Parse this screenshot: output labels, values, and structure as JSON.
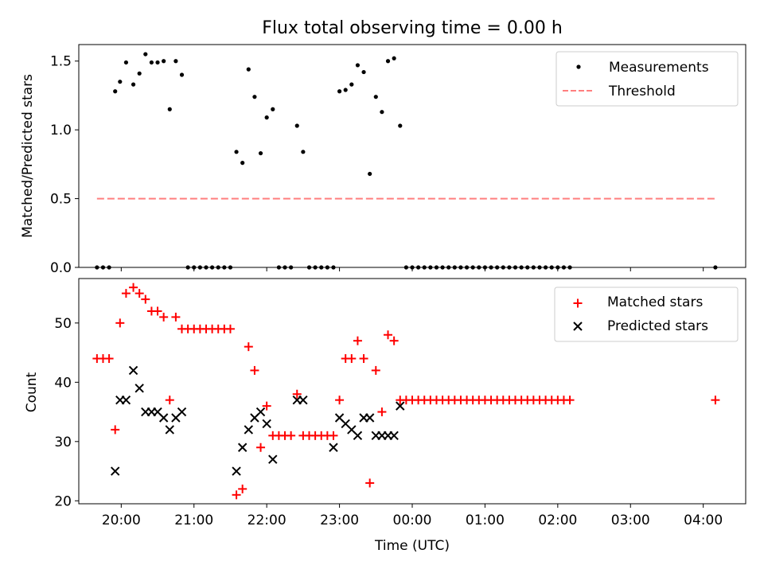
{
  "chart_data": [
    {
      "type": "scatter",
      "title": "Flux total observing time = 0.00 h",
      "xlabel": "",
      "ylabel": "Matched/Predicted stars",
      "xlim": [
        "19:25",
        "04:35"
      ],
      "ylim": [
        0,
        1.62
      ],
      "yticks": [
        "0.0",
        "0.5",
        "1.0",
        "1.5"
      ],
      "legend_position": "upper right",
      "series": [
        {
          "name": "Measurements",
          "marker": "dot",
          "color": "#000000",
          "x": [
            "19:40",
            "19:45",
            "19:50",
            "19:55",
            "19:59",
            "20:04",
            "20:10",
            "20:15",
            "20:20",
            "20:25",
            "20:30",
            "20:35",
            "20:40",
            "20:45",
            "20:50",
            "20:55",
            "21:00",
            "21:05",
            "21:10",
            "21:15",
            "21:20",
            "21:25",
            "21:30",
            "21:35",
            "21:40",
            "21:45",
            "21:50",
            "21:55",
            "22:00",
            "22:05",
            "22:10",
            "22:15",
            "22:20",
            "22:25",
            "22:30",
            "22:35",
            "22:40",
            "22:45",
            "22:50",
            "22:55",
            "23:00",
            "23:05",
            "23:10",
            "23:15",
            "23:20",
            "23:25",
            "23:30",
            "23:35",
            "23:40",
            "23:45",
            "23:50",
            "23:55",
            "00:00",
            "00:05",
            "00:10",
            "00:15",
            "00:20",
            "00:25",
            "00:30",
            "00:35",
            "00:40",
            "00:45",
            "00:50",
            "00:55",
            "01:00",
            "01:05",
            "01:10",
            "01:15",
            "01:20",
            "01:25",
            "01:30",
            "01:35",
            "01:40",
            "01:45",
            "01:50",
            "01:55",
            "02:00",
            "02:05",
            "02:10",
            "04:10"
          ],
          "y": [
            0,
            0,
            0,
            1.28,
            1.35,
            1.49,
            1.33,
            1.41,
            1.55,
            1.49,
            1.49,
            1.5,
            1.15,
            1.5,
            1.4,
            0,
            0,
            0,
            0,
            0,
            0,
            0,
            0,
            0.84,
            0.76,
            1.44,
            1.24,
            0.83,
            1.09,
            1.15,
            0,
            0,
            0,
            1.03,
            0.84,
            0,
            0,
            0,
            0,
            0,
            1.28,
            1.29,
            1.33,
            1.47,
            1.42,
            0.68,
            1.24,
            1.13,
            1.5,
            1.52,
            1.03,
            0,
            0,
            0,
            0,
            0,
            0,
            0,
            0,
            0,
            0,
            0,
            0,
            0,
            0,
            0,
            0,
            0,
            0,
            0,
            0,
            0,
            0,
            0,
            0,
            0,
            0,
            0,
            0,
            0
          ]
        },
        {
          "name": "Threshold",
          "style": "dashed",
          "color": "#ff7f7f",
          "x": [
            "19:40",
            "04:10"
          ],
          "y": [
            0.5,
            0.5
          ]
        }
      ]
    },
    {
      "type": "scatter",
      "title": "",
      "xlabel": "Time (UTC)",
      "ylabel": "Count",
      "xlim": [
        "19:25",
        "04:35"
      ],
      "ylim": [
        19.5,
        57.5
      ],
      "yticks": [
        "20",
        "30",
        "40",
        "50"
      ],
      "xticks": [
        "20:00",
        "21:00",
        "22:00",
        "23:00",
        "00:00",
        "01:00",
        "02:00",
        "03:00",
        "04:00"
      ],
      "legend_position": "upper right",
      "series": [
        {
          "name": "Matched stars",
          "marker": "plus",
          "color": "#ff0000",
          "x": [
            "19:40",
            "19:45",
            "19:50",
            "19:55",
            "19:59",
            "20:04",
            "20:10",
            "20:15",
            "20:20",
            "20:25",
            "20:30",
            "20:35",
            "20:40",
            "20:45",
            "20:50",
            "20:55",
            "21:00",
            "21:05",
            "21:10",
            "21:15",
            "21:20",
            "21:25",
            "21:30",
            "21:35",
            "21:40",
            "21:45",
            "21:50",
            "21:55",
            "22:00",
            "22:05",
            "22:10",
            "22:15",
            "22:20",
            "22:25",
            "22:30",
            "22:35",
            "22:40",
            "22:45",
            "22:50",
            "22:55",
            "23:00",
            "23:05",
            "23:10",
            "23:15",
            "23:20",
            "23:25",
            "23:30",
            "23:35",
            "23:40",
            "23:45",
            "23:50",
            "23:55",
            "00:00",
            "00:05",
            "00:10",
            "00:15",
            "00:20",
            "00:25",
            "00:30",
            "00:35",
            "00:40",
            "00:45",
            "00:50",
            "00:55",
            "01:00",
            "01:05",
            "01:10",
            "01:15",
            "01:20",
            "01:25",
            "01:30",
            "01:35",
            "01:40",
            "01:45",
            "01:50",
            "01:55",
            "02:00",
            "02:05",
            "02:10",
            "04:10"
          ],
          "y": [
            44,
            44,
            44,
            32,
            50,
            55,
            56,
            55,
            54,
            52,
            52,
            51,
            37,
            51,
            49,
            49,
            49,
            49,
            49,
            49,
            49,
            49,
            49,
            21,
            22,
            46,
            42,
            29,
            36,
            31,
            31,
            31,
            31,
            38,
            31,
            31,
            31,
            31,
            31,
            31,
            37,
            44,
            44,
            47,
            44,
            23,
            42,
            35,
            48,
            47,
            37,
            37,
            37,
            37,
            37,
            37,
            37,
            37,
            37,
            37,
            37,
            37,
            37,
            37,
            37,
            37,
            37,
            37,
            37,
            37,
            37,
            37,
            37,
            37,
            37,
            37,
            37,
            37,
            37,
            37
          ]
        },
        {
          "name": "Predicted stars",
          "marker": "x",
          "color": "#000000",
          "x": [
            "19:55",
            "19:59",
            "20:04",
            "20:10",
            "20:15",
            "20:20",
            "20:25",
            "20:30",
            "20:35",
            "20:40",
            "20:45",
            "20:50",
            "21:35",
            "21:40",
            "21:45",
            "21:50",
            "21:55",
            "22:00",
            "22:05",
            "22:25",
            "22:30",
            "22:55",
            "23:00",
            "23:05",
            "23:10",
            "23:15",
            "23:20",
            "23:25",
            "23:30",
            "23:35",
            "23:40",
            "23:45",
            "23:50"
          ],
          "y": [
            25,
            37,
            37,
            42,
            39,
            35,
            35,
            35,
            34,
            32,
            34,
            35,
            25,
            29,
            32,
            34,
            35,
            33,
            27,
            37,
            37,
            29,
            34,
            33,
            32,
            31,
            34,
            34,
            31,
            31,
            31,
            31,
            36
          ]
        }
      ]
    }
  ]
}
